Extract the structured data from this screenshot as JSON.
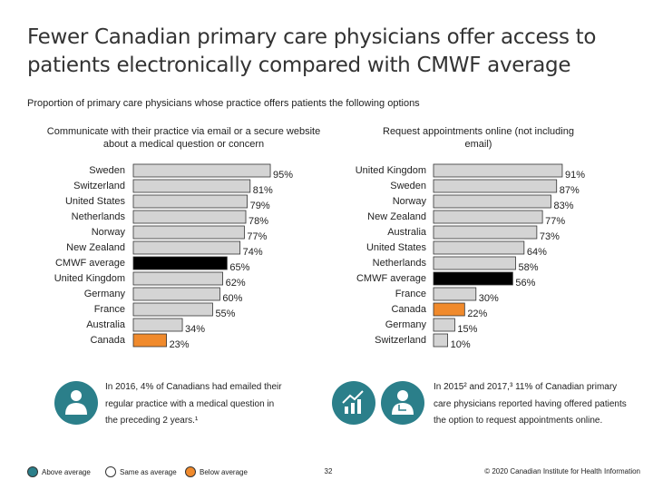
{
  "slide": {
    "title": "Fewer Canadian primary care physicians offer access to patients electronically compared with CMWF average",
    "subtitle": "Proportion of primary care physicians whose practice offers patients the following options",
    "notes": [
      "In 2016, 4% of Canadians had emailed their regular practice with a medical question in the preceding 2 years.¹",
      "In 2015² and 2017,³ 11% of Canadian primary care physicians reported having offered patients the option to request appointments online."
    ],
    "legend": [
      {
        "label": "Above average",
        "color": "#2b7f8a"
      },
      {
        "label": "Same as average",
        "color": "#ffffff"
      },
      {
        "label": "Below average",
        "color": "#f08a2c"
      }
    ],
    "page_number": "32",
    "copyright": "© 2020 Canadian Institute for Health Information"
  },
  "chart_data": [
    {
      "type": "bar",
      "orientation": "horizontal",
      "title": "Communicate with their practice via email or a secure website about a medical question or concern",
      "categories": [
        "Sweden",
        "Switzerland",
        "United States",
        "Netherlands",
        "Norway",
        "New Zealand",
        "CMWF average",
        "United Kingdom",
        "Germany",
        "France",
        "Australia",
        "Canada"
      ],
      "values": [
        95,
        81,
        79,
        78,
        77,
        74,
        65,
        62,
        60,
        55,
        34,
        23
      ],
      "value_labels": [
        "95%",
        "81%",
        "79%",
        "78%",
        "77%",
        "74%",
        "65%",
        "62%",
        "60%",
        "55%",
        "34%",
        "23%"
      ],
      "colors": [
        "#d4d4d4",
        "#d4d4d4",
        "#d4d4d4",
        "#d4d4d4",
        "#d4d4d4",
        "#d4d4d4",
        "#000000",
        "#d4d4d4",
        "#d4d4d4",
        "#d4d4d4",
        "#d4d4d4",
        "#f08a2c"
      ],
      "xlim": [
        0,
        100
      ]
    },
    {
      "type": "bar",
      "orientation": "horizontal",
      "title": "Request appointments online (not including email)",
      "categories": [
        "United Kingdom",
        "Sweden",
        "Norway",
        "New Zealand",
        "Australia",
        "United States",
        "Netherlands",
        "CMWF average",
        "France",
        "Canada",
        "Germany",
        "Switzerland"
      ],
      "values": [
        91,
        87,
        83,
        77,
        73,
        64,
        58,
        56,
        30,
        22,
        15,
        10
      ],
      "value_labels": [
        "91%",
        "87%",
        "83%",
        "77%",
        "73%",
        "64%",
        "58%",
        "56%",
        "30%",
        "22%",
        "15%",
        "10%"
      ],
      "colors": [
        "#d4d4d4",
        "#d4d4d4",
        "#d4d4d4",
        "#d4d4d4",
        "#d4d4d4",
        "#d4d4d4",
        "#d4d4d4",
        "#000000",
        "#d4d4d4",
        "#f08a2c",
        "#d4d4d4",
        "#d4d4d4"
      ],
      "xlim": [
        0,
        100
      ]
    }
  ]
}
